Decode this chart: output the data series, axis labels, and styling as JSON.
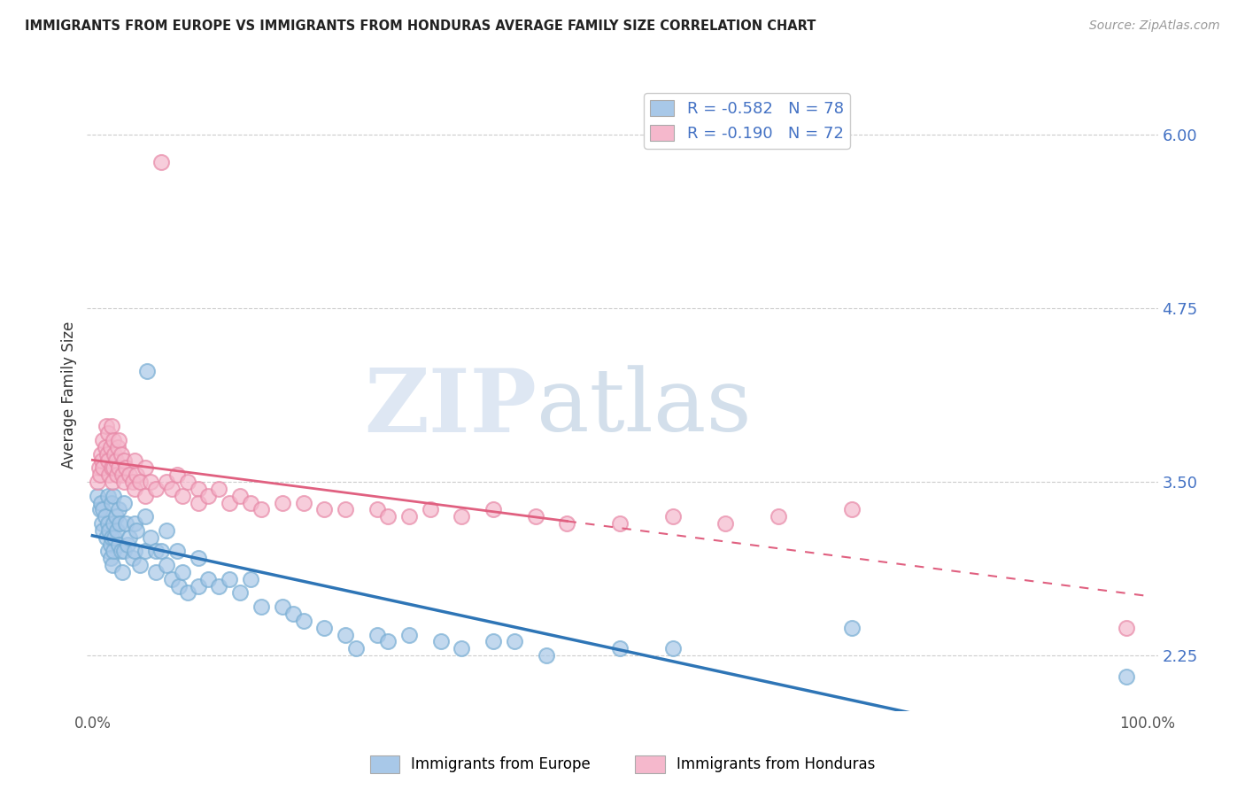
{
  "title": "IMMIGRANTS FROM EUROPE VS IMMIGRANTS FROM HONDURAS AVERAGE FAMILY SIZE CORRELATION CHART",
  "source": "Source: ZipAtlas.com",
  "ylabel": "Average Family Size",
  "yticks": [
    2.25,
    3.5,
    4.75,
    6.0
  ],
  "ymin": 1.85,
  "ymax": 6.4,
  "xmin": -0.005,
  "xmax": 1.01,
  "europe_color": "#A8C8E8",
  "europe_edge_color": "#7AAFD4",
  "honduras_color": "#F5B8CC",
  "honduras_edge_color": "#E88AA8",
  "europe_R": -0.582,
  "europe_N": 78,
  "honduras_R": -0.19,
  "honduras_N": 72,
  "trend_europe_color": "#2E75B6",
  "trend_honduras_color": "#E06080",
  "watermark_zip": "ZIP",
  "watermark_atlas": "atlas",
  "watermark_color": "#C8D8E8",
  "axis_color": "#4472C4",
  "label_color": "#333333",
  "background_color": "#FFFFFF",
  "grid_color": "#CCCCCC",
  "legend_r_color": "#333333",
  "legend_n_color": "#4472C4",
  "europe_x": [
    0.005,
    0.007,
    0.008,
    0.009,
    0.01,
    0.01,
    0.012,
    0.013,
    0.015,
    0.015,
    0.015,
    0.016,
    0.017,
    0.017,
    0.018,
    0.018,
    0.019,
    0.02,
    0.02,
    0.02,
    0.021,
    0.022,
    0.023,
    0.025,
    0.025,
    0.026,
    0.027,
    0.028,
    0.03,
    0.03,
    0.032,
    0.033,
    0.035,
    0.038,
    0.04,
    0.04,
    0.042,
    0.045,
    0.05,
    0.05,
    0.052,
    0.055,
    0.06,
    0.06,
    0.065,
    0.07,
    0.07,
    0.075,
    0.08,
    0.082,
    0.085,
    0.09,
    0.1,
    0.1,
    0.11,
    0.12,
    0.13,
    0.14,
    0.15,
    0.16,
    0.18,
    0.19,
    0.2,
    0.22,
    0.24,
    0.25,
    0.27,
    0.28,
    0.3,
    0.33,
    0.35,
    0.38,
    0.4,
    0.43,
    0.5,
    0.55,
    0.72,
    0.98
  ],
  "europe_y": [
    3.4,
    3.3,
    3.35,
    3.2,
    3.3,
    3.15,
    3.25,
    3.1,
    3.4,
    3.2,
    3.0,
    3.15,
    3.05,
    2.95,
    3.35,
    3.1,
    2.9,
    3.4,
    3.2,
    3.0,
    3.1,
    3.25,
    3.15,
    3.3,
    3.05,
    3.2,
    3.0,
    2.85,
    3.35,
    3.0,
    3.2,
    3.05,
    3.1,
    2.95,
    3.2,
    3.0,
    3.15,
    2.9,
    3.25,
    3.0,
    4.3,
    3.1,
    3.0,
    2.85,
    3.0,
    3.15,
    2.9,
    2.8,
    3.0,
    2.75,
    2.85,
    2.7,
    2.95,
    2.75,
    2.8,
    2.75,
    2.8,
    2.7,
    2.8,
    2.6,
    2.6,
    2.55,
    2.5,
    2.45,
    2.4,
    2.3,
    2.4,
    2.35,
    2.4,
    2.35,
    2.3,
    2.35,
    2.35,
    2.25,
    2.3,
    2.3,
    2.45,
    2.1
  ],
  "honduras_x": [
    0.005,
    0.006,
    0.007,
    0.008,
    0.009,
    0.01,
    0.01,
    0.012,
    0.013,
    0.014,
    0.015,
    0.015,
    0.016,
    0.017,
    0.018,
    0.018,
    0.019,
    0.02,
    0.02,
    0.021,
    0.022,
    0.023,
    0.024,
    0.025,
    0.025,
    0.027,
    0.028,
    0.03,
    0.03,
    0.032,
    0.035,
    0.038,
    0.04,
    0.04,
    0.042,
    0.045,
    0.05,
    0.05,
    0.055,
    0.06,
    0.065,
    0.07,
    0.075,
    0.08,
    0.085,
    0.09,
    0.1,
    0.1,
    0.11,
    0.12,
    0.13,
    0.14,
    0.15,
    0.16,
    0.18,
    0.2,
    0.22,
    0.24,
    0.27,
    0.28,
    0.3,
    0.32,
    0.35,
    0.38,
    0.42,
    0.45,
    0.5,
    0.55,
    0.6,
    0.65,
    0.72,
    0.98
  ],
  "honduras_y": [
    3.5,
    3.6,
    3.55,
    3.7,
    3.65,
    3.8,
    3.6,
    3.75,
    3.9,
    3.7,
    3.85,
    3.65,
    3.55,
    3.75,
    3.9,
    3.6,
    3.5,
    3.8,
    3.6,
    3.7,
    3.65,
    3.55,
    3.75,
    3.8,
    3.6,
    3.7,
    3.55,
    3.65,
    3.5,
    3.6,
    3.55,
    3.5,
    3.65,
    3.45,
    3.55,
    3.5,
    3.6,
    3.4,
    3.5,
    3.45,
    5.8,
    3.5,
    3.45,
    3.55,
    3.4,
    3.5,
    3.45,
    3.35,
    3.4,
    3.45,
    3.35,
    3.4,
    3.35,
    3.3,
    3.35,
    3.35,
    3.3,
    3.3,
    3.3,
    3.25,
    3.25,
    3.3,
    3.25,
    3.3,
    3.25,
    3.2,
    3.2,
    3.25,
    3.2,
    3.25,
    3.3,
    2.45
  ]
}
